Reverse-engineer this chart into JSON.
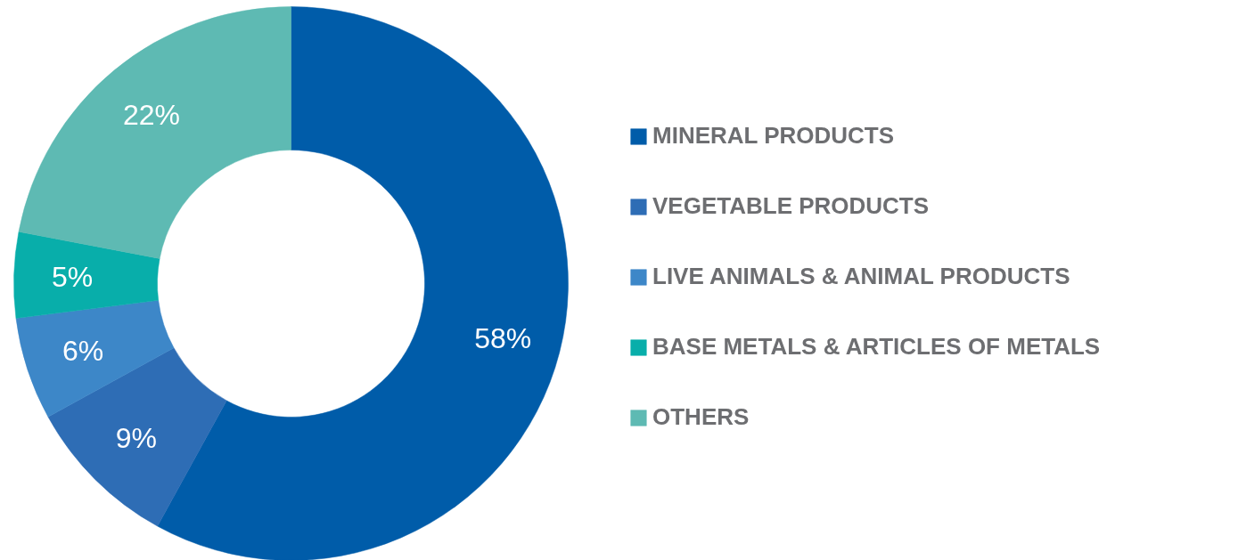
{
  "chart_data": {
    "type": "donut",
    "categories": [
      "MINERAL PRODUCTS",
      "VEGETABLE PRODUCTS",
      "LIVE ANIMALS & ANIMAL PRODUCTS",
      "BASE METALS & ARTICLES OF METALS",
      "OTHERS"
    ],
    "values": [
      58,
      9,
      6,
      5,
      22
    ],
    "colors": [
      "#005ca9",
      "#2e6db5",
      "#3d87c8",
      "#08aeaa",
      "#5ebab3"
    ],
    "value_labels": [
      "58%",
      "9%",
      "6%",
      "5%",
      "22%"
    ],
    "legend": "right"
  }
}
